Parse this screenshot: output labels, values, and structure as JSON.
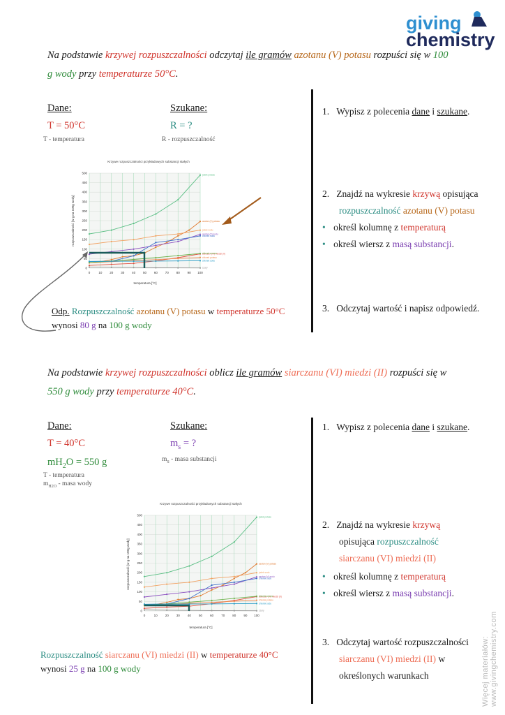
{
  "logo": {
    "line1": "giving",
    "line2": "chemistry"
  },
  "task1": {
    "p1": "Na podstawie ",
    "p2": "krzywej rozpuszczalności",
    "p3": " odczytaj ",
    "p4": "ile gramów",
    "p5": " ",
    "p6": "azotanu (V) potasu",
    "p7": " rozpuści się w ",
    "p8": "100",
    "p9": "g wody",
    "p10": " przy ",
    "p11": "temperaturze 50°C",
    "p12": "."
  },
  "given1": {
    "dane_header": "Dane:",
    "szukane_header": "Szukane:",
    "t_value": "T = 50°C",
    "t_desc": "T - temperatura",
    "r_value": "R = ?",
    "r_desc": "R - rozpuszczalność"
  },
  "steps1": {
    "s1_num": "1.",
    "s1_a": "Wypisz z polecenia ",
    "s1_b": "dane",
    "s1_c": " i ",
    "s1_d": "szukane",
    "s1_e": ".",
    "s2_num": "2.",
    "s2_a": "Znajdź na wykresie ",
    "s2_b": "krzywą",
    "s2_c": " opisująca",
    "s2_d": "rozpuszczalność",
    "s2_e": " ",
    "s2_f": "azotanu (V) potasu",
    "b1_a": "określ kolumnę z ",
    "b1_b": "temperaturą",
    "b2_a": "określ wiersz z ",
    "b2_b": "masą substancji",
    "b2_c": ".",
    "s3_num": "3.",
    "s3_a": "Odczytaj wartość i napisz odpowiedź."
  },
  "answer1": {
    "a1": "Odp.",
    "a2": " ",
    "a3": "Rozpuszczalność",
    "a4": " ",
    "a5": "azotanu (V) potasu",
    "a6": " w ",
    "a7": "temperaturze 50°C",
    "a8": "wynosi ",
    "a9": "80 g",
    "a10": " na ",
    "a11": "100 g wody"
  },
  "task2": {
    "p1": "Na podstawie ",
    "p2": "krzywej rozpuszczalności",
    "p3": " oblicz ",
    "p4": "ile gramów",
    "p5": " ",
    "p6": "siarczanu (VI) miedzi (II)",
    "p7": " rozpuści się w",
    "p8": "550 g wody",
    "p9": " przy ",
    "p10": "temperaturze 40°C",
    "p11": "."
  },
  "given2": {
    "dane_header": "Dane:",
    "szukane_header": "Szukane:",
    "t_value": "T = 40°C",
    "m_value_a": "mH",
    "m_value_sub": "2",
    "m_value_b": "O = 550 g",
    "t_desc": "T - temperatura",
    "m_desc_a": "m",
    "m_desc_sub": "H2O",
    "m_desc_b": " - masa wody",
    "ms_value_a": "m",
    "ms_value_sub": "s",
    "ms_value_b": " = ?",
    "ms_desc_a": "m",
    "ms_desc_sub": "S",
    "ms_desc_b": " - masa substancji"
  },
  "steps2": {
    "s1_num": "1.",
    "s1_a": "Wypisz z polecenia ",
    "s1_b": "dane",
    "s1_c": " i ",
    "s1_d": "szukane",
    "s1_e": ".",
    "s2_num": "2.",
    "s2_a": "Znajdź na wykresie ",
    "s2_b": "krzywą",
    "s2_c": "opisująca ",
    "s2_d": "rozpuszczalność",
    "s2_e": "siarczanu (VI) miedzi (II)",
    "b1_a": "określ kolumnę z ",
    "b1_b": "temperaturą",
    "b2_a": "określ wiersz z ",
    "b2_b": "masą substancji",
    "b2_c": ".",
    "s3_num": "3.",
    "s3_a": "Odczytaj wartość rozpuszczalności",
    "s3_b": "siarczanu (VI) miedzi (II)",
    "s3_c": " w",
    "s3_d": "określonych warunkach"
  },
  "answer2": {
    "a1": "Rozpuszczalność",
    "a2": " ",
    "a3": "siarczanu (VI) miedzi (II)",
    "a4": " w ",
    "a5": "temperaturze 40°C",
    "a6": "wynosi ",
    "a7": "25 g",
    "a8": " na ",
    "a9": "100 g wody"
  },
  "side_text": "Więcej materiałów: www.givingchemistry.com",
  "chart_data": [
    {
      "type": "line",
      "title": "Krzywe rozpuszczalności przykładowych substancji stałych",
      "xlabel": "temperatura [°C]",
      "ylabel": "rozpuszczalność [w g na 100g wody]",
      "x": [
        0,
        10,
        20,
        30,
        40,
        50,
        60,
        70,
        80,
        90,
        100
      ],
      "xlim": [
        0,
        100
      ],
      "ylim": [
        0,
        500
      ],
      "xticks": [
        "0",
        "10",
        "20",
        "30",
        "40",
        "50",
        "60",
        "70",
        "80",
        "90",
        "100"
      ],
      "yticks": [
        "0",
        "50",
        "100",
        "150",
        "200",
        "250",
        "300",
        "350",
        "400",
        "450",
        "500"
      ],
      "grid": true,
      "legend_position": "right",
      "series": [
        {
          "name": "jodek potasu",
          "color": "#5bbf85",
          "points": [
            [
              0,
              180
            ],
            [
              20,
              200
            ],
            [
              40,
              235
            ],
            [
              60,
              285
            ],
            [
              80,
              360
            ],
            [
              100,
              490
            ]
          ]
        },
        {
          "name": "azotan (V) potasu",
          "color": "#e07a30",
          "points": [
            [
              0,
              28
            ],
            [
              10,
              34
            ],
            [
              20,
              45
            ],
            [
              30,
              60
            ],
            [
              40,
              65
            ],
            [
              50,
              80
            ],
            [
              60,
              110
            ],
            [
              70,
              135
            ],
            [
              80,
              170
            ],
            [
              90,
              200
            ],
            [
              100,
              246
            ]
          ]
        },
        {
          "name": "jodek sodu",
          "color": "#f2a060",
          "points": [
            [
              0,
              125
            ],
            [
              20,
              140
            ],
            [
              40,
              150
            ],
            [
              60,
              170
            ],
            [
              80,
              180
            ],
            [
              100,
              200
            ]
          ]
        },
        {
          "name": "azotan (V) sodu",
          "color": "#8a4fc0",
          "points": [
            [
              0,
              73
            ],
            [
              20,
              87
            ],
            [
              40,
              100
            ],
            [
              60,
              120
            ],
            [
              80,
              140
            ],
            [
              100,
              178
            ]
          ]
        },
        {
          "name": "chlorek sodu",
          "color": "#3a6cc8",
          "points": [
            [
              0,
              35
            ],
            [
              20,
              36
            ],
            [
              40,
              65
            ],
            [
              60,
              135
            ],
            [
              80,
              150
            ],
            [
              100,
              170
            ]
          ]
        },
        {
          "name": "siarczan (VI) miedzi (II)",
          "color": "#e05040",
          "points": [
            [
              0,
              14
            ],
            [
              20,
              20
            ],
            [
              40,
              25
            ],
            [
              60,
              38
            ],
            [
              80,
              55
            ],
            [
              100,
              75
            ]
          ]
        },
        {
          "name": "chlorek potasu",
          "color": "#f08a50",
          "points": [
            [
              0,
              28
            ],
            [
              20,
              34
            ],
            [
              40,
              40
            ],
            [
              60,
              45
            ],
            [
              80,
              51
            ],
            [
              100,
              56
            ]
          ]
        },
        {
          "name": "chlorek amonu",
          "color": "#6bb04a",
          "points": [
            [
              0,
              29
            ],
            [
              20,
              37
            ],
            [
              40,
              46
            ],
            [
              60,
              55
            ],
            [
              80,
              66
            ],
            [
              100,
              77
            ]
          ]
        },
        {
          "name": "chlorek sodu",
          "color": "#2a9dc8",
          "points": [
            [
              0,
              35
            ],
            [
              20,
              36
            ],
            [
              40,
              36.5
            ],
            [
              60,
              37
            ],
            [
              80,
              38
            ],
            [
              100,
              39
            ]
          ]
        },
        {
          "name": "szary",
          "color": "#999999",
          "points": [
            [
              0,
              5
            ],
            [
              20,
              4
            ],
            [
              40,
              3
            ],
            [
              60,
              2
            ],
            [
              80,
              1.5
            ],
            [
              100,
              1
            ]
          ]
        }
      ]
    },
    {
      "type": "line",
      "title": "Krzywe rozpuszczalności przykładowych substancji stałych",
      "xlabel": "temperatura [°C]",
      "ylabel": "rozpuszczalność [w g na 100g wody]",
      "x": [
        0,
        10,
        20,
        30,
        40,
        50,
        60,
        70,
        80,
        90,
        100
      ],
      "xlim": [
        0,
        100
      ],
      "ylim": [
        0,
        500
      ],
      "xticks": [
        "0",
        "10",
        "20",
        "30",
        "40",
        "50",
        "60",
        "70",
        "80",
        "90",
        "100"
      ],
      "yticks": [
        "0",
        "50",
        "100",
        "150",
        "200",
        "250",
        "300",
        "350",
        "400",
        "450",
        "500"
      ],
      "grid": true,
      "legend_position": "right",
      "series": "same as chart 1"
    }
  ]
}
